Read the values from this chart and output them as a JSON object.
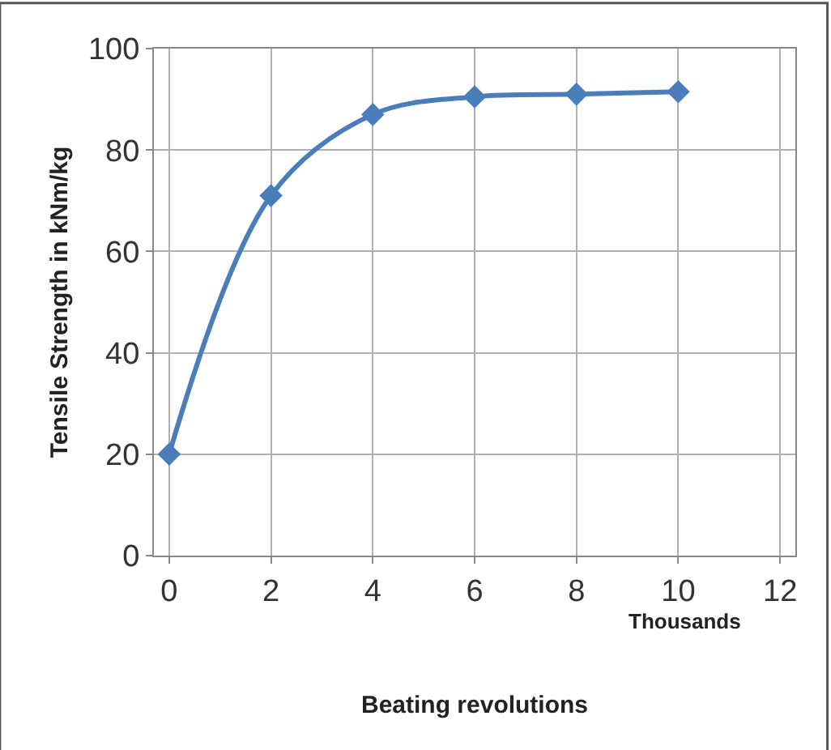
{
  "chart_data": {
    "type": "line",
    "xlabel": "Beating revolutions",
    "ylabel": "Tensile Strength in kNm/kg",
    "annotations": [
      {
        "text": "Thousands"
      }
    ],
    "x": [
      0,
      2,
      4,
      6,
      8,
      10
    ],
    "series": [
      {
        "color": "#4a7ebb",
        "values": [
          20,
          71,
          87,
          90.5,
          91,
          91.5
        ]
      }
    ],
    "xlim": [
      -0.3,
      12.3
    ],
    "xticks": [
      0,
      2,
      4,
      6,
      8,
      10,
      12
    ],
    "ylim": [
      0,
      100
    ],
    "yticks": [
      0,
      20,
      40,
      60,
      80,
      100
    ],
    "grid": true,
    "marker": "diamond",
    "line_style": "solid",
    "legend": false
  }
}
